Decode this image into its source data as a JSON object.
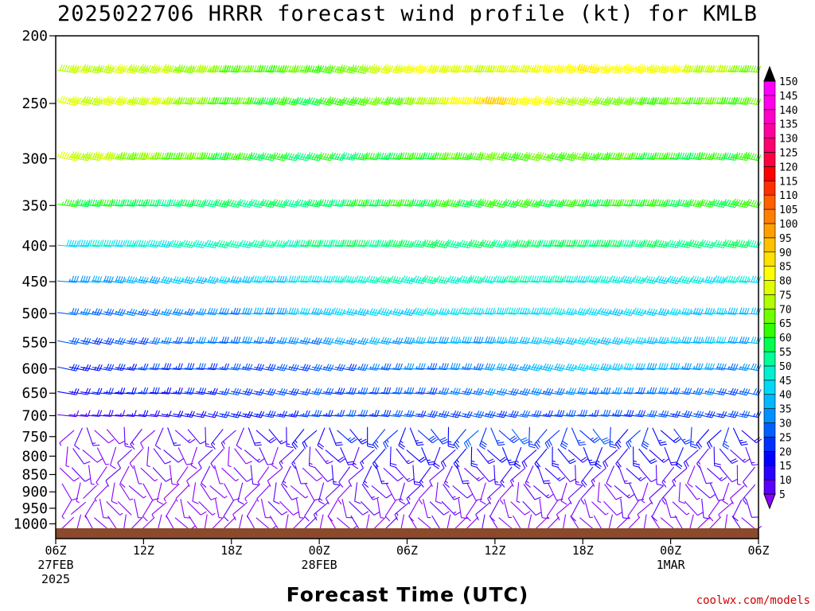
{
  "title": "2025022706 HRRR forecast wind profile (kt) for KMLB",
  "xlabel": "Forecast Time (UTC)",
  "credit": "coolwx.com/models",
  "chart_data": {
    "type": "wind-barb-time-height",
    "title": "2025022706 HRRR forecast wind profile (kt) for KMLB",
    "xlabel": "Forecast Time (UTC)",
    "ylabel": "",
    "y_axis": {
      "scale": "log-pressure",
      "inverted": true,
      "range": [
        1050,
        200
      ],
      "ticks": [
        200,
        250,
        300,
        350,
        400,
        450,
        500,
        550,
        600,
        650,
        700,
        750,
        800,
        850,
        900,
        950,
        1000
      ]
    },
    "x_axis": {
      "range_hours": [
        0,
        48
      ],
      "ticks": [
        {
          "hour": 0,
          "label": "06Z",
          "sub1": "27FEB",
          "sub2": "2025"
        },
        {
          "hour": 6,
          "label": "12Z",
          "sub1": "",
          "sub2": ""
        },
        {
          "hour": 12,
          "label": "18Z",
          "sub1": "",
          "sub2": ""
        },
        {
          "hour": 18,
          "label": "00Z",
          "sub1": "28FEB",
          "sub2": ""
        },
        {
          "hour": 24,
          "label": "06Z",
          "sub1": "",
          "sub2": ""
        },
        {
          "hour": 30,
          "label": "12Z",
          "sub1": "",
          "sub2": ""
        },
        {
          "hour": 36,
          "label": "18Z",
          "sub1": "",
          "sub2": ""
        },
        {
          "hour": 42,
          "label": "00Z",
          "sub1": "1MAR",
          "sub2": ""
        },
        {
          "hour": 48,
          "label": "06Z",
          "sub1": "",
          "sub2": ""
        }
      ]
    },
    "colorbar": {
      "units": "kt",
      "levels": [
        5,
        10,
        15,
        20,
        25,
        30,
        35,
        40,
        45,
        50,
        55,
        60,
        65,
        70,
        75,
        80,
        85,
        90,
        95,
        100,
        105,
        110,
        115,
        120,
        125,
        130,
        135,
        140,
        145,
        150
      ],
      "colors": [
        "#8a00ff",
        "#5a00ff",
        "#2a00ff",
        "#0000ff",
        "#0030ff",
        "#0060ff",
        "#0090ff",
        "#00b8ff",
        "#00d8f8",
        "#00f0d0",
        "#00ff98",
        "#00ff50",
        "#30ff00",
        "#70ff00",
        "#b0ff00",
        "#e0ff00",
        "#ffff00",
        "#ffe000",
        "#ffc000",
        "#ffa000",
        "#ff8000",
        "#ff6000",
        "#ff3000",
        "#ff0000",
        "#ff0040",
        "#ff0070",
        "#ff00a0",
        "#ff00c8",
        "#ff00e8",
        "#ff00ff"
      ]
    },
    "wind_profile_speed_kt_approx": [
      {
        "p": 225,
        "speeds": [
          78,
          80,
          72,
          70,
          85,
          80,
          90,
          85,
          75
        ]
      },
      {
        "p": 250,
        "speeds": [
          82,
          80,
          68,
          65,
          75,
          95,
          75,
          70,
          70
        ]
      },
      {
        "p": 300,
        "speeds": [
          80,
          75,
          65,
          62,
          65,
          70,
          70,
          65,
          65
        ]
      },
      {
        "p": 350,
        "speeds": [
          65,
          62,
          60,
          62,
          65,
          65,
          65,
          65,
          65
        ]
      },
      {
        "p": 400,
        "speeds": [
          50,
          52,
          55,
          60,
          60,
          60,
          62,
          60,
          60
        ]
      },
      {
        "p": 450,
        "speeds": [
          38,
          42,
          45,
          50,
          55,
          55,
          52,
          50,
          50
        ]
      },
      {
        "p": 500,
        "speeds": [
          32,
          35,
          38,
          45,
          48,
          48,
          48,
          45,
          42
        ]
      },
      {
        "p": 550,
        "speeds": [
          30,
          32,
          35,
          38,
          40,
          42,
          45,
          45,
          40
        ]
      },
      {
        "p": 600,
        "speeds": [
          25,
          28,
          30,
          32,
          35,
          38,
          45,
          40,
          35
        ]
      },
      {
        "p": 650,
        "speeds": [
          22,
          25,
          28,
          30,
          32,
          35,
          35,
          35,
          30
        ]
      },
      {
        "p": 700,
        "speeds": [
          15,
          18,
          25,
          28,
          30,
          30,
          30,
          30,
          28
        ]
      },
      {
        "p": 750,
        "speeds": [
          10,
          12,
          15,
          22,
          25,
          28,
          28,
          25,
          22
        ]
      },
      {
        "p": 800,
        "speeds": [
          8,
          10,
          10,
          15,
          20,
          22,
          22,
          20,
          15
        ]
      },
      {
        "p": 850,
        "speeds": [
          8,
          8,
          8,
          12,
          15,
          15,
          15,
          12,
          10
        ]
      },
      {
        "p": 900,
        "speeds": [
          5,
          6,
          8,
          10,
          12,
          10,
          10,
          10,
          10
        ]
      },
      {
        "p": 950,
        "speeds": [
          5,
          5,
          8,
          10,
          10,
          10,
          8,
          8,
          10
        ]
      },
      {
        "p": 1000,
        "speeds": [
          5,
          5,
          5,
          8,
          8,
          8,
          5,
          5,
          8
        ]
      }
    ],
    "ground_color": "#8b4a2b",
    "grid": false
  }
}
